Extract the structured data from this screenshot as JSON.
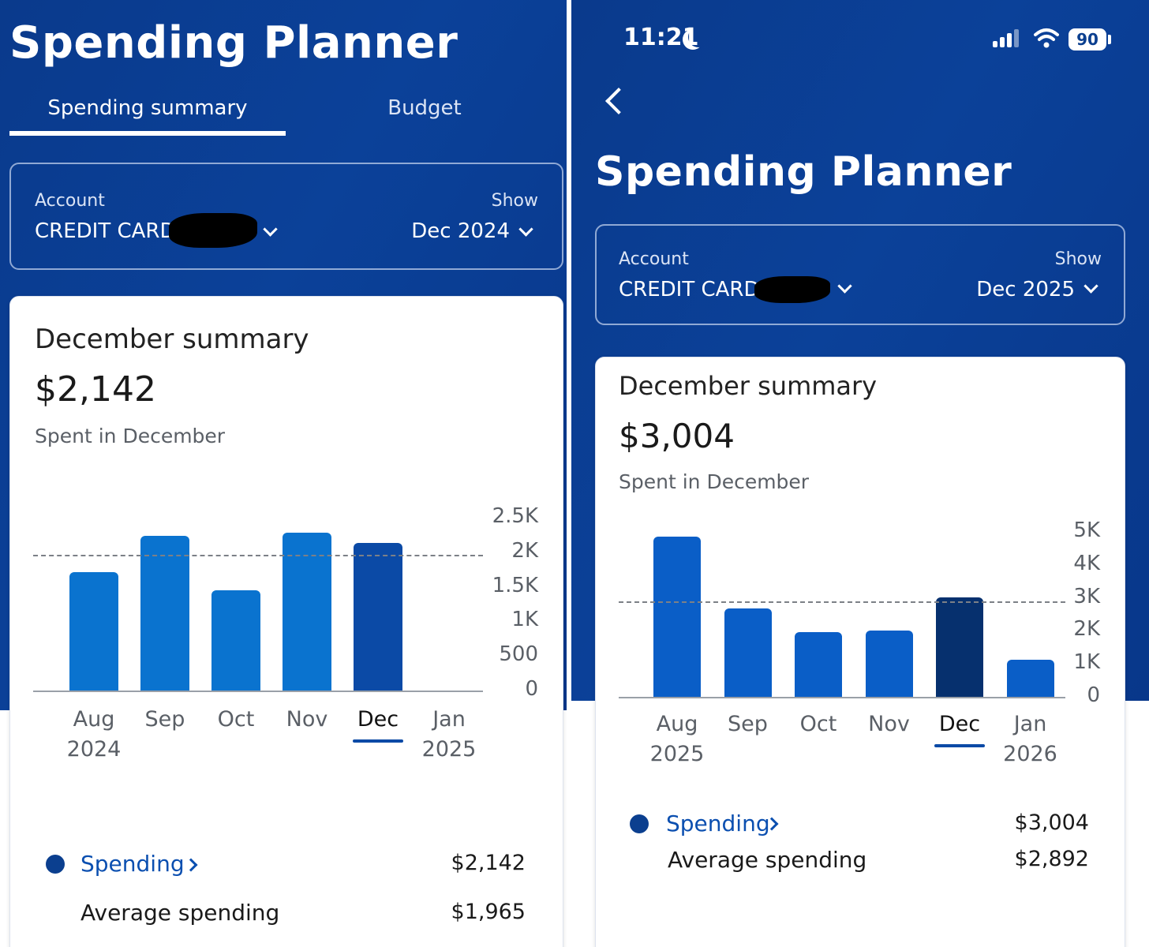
{
  "left": {
    "title": "Spending Planner",
    "tabs": [
      {
        "label": "Spending summary",
        "active": true
      },
      {
        "label": "Budget",
        "active": false
      }
    ],
    "account": {
      "label": "Account",
      "value": "CREDIT CARD"
    },
    "show": {
      "label": "Show",
      "value": "Dec 2024"
    },
    "summary": {
      "title": "December summary",
      "amount": "$2,142",
      "subtitle": "Spent in December"
    },
    "chart_data": {
      "type": "bar",
      "categories": [
        "Aug 2024",
        "Sep",
        "Oct",
        "Nov",
        "Dec",
        "Jan 2025"
      ],
      "x_labels": [
        [
          "Aug",
          "2024"
        ],
        [
          "Sep",
          ""
        ],
        [
          "Oct",
          ""
        ],
        [
          "Nov",
          ""
        ],
        [
          "Dec",
          ""
        ],
        [
          "Jan",
          "2025"
        ]
      ],
      "values": [
        1710,
        2240,
        1450,
        2280,
        2140,
        0
      ],
      "selected_index": 4,
      "average": 1965,
      "ylim": [
        0,
        2500
      ],
      "yticks": [
        "2.5K",
        "2K",
        "1.5K",
        "1K",
        "500",
        "0"
      ],
      "bar_color": "#0a73cf",
      "selected_color": "#0b4aa6"
    },
    "legend": {
      "spending_label": "Spending",
      "spending_value": "$2,142",
      "avg_label": "Average spending",
      "avg_value": "$1,965"
    }
  },
  "right": {
    "status": {
      "time": "11:21",
      "battery": "90"
    },
    "title": "Spending Planner",
    "account": {
      "label": "Account",
      "value": "CREDIT CARD"
    },
    "show": {
      "label": "Show",
      "value": "Dec 2025"
    },
    "summary": {
      "title": "December summary",
      "amount": "$3,004",
      "subtitle": "Spent in December"
    },
    "chart_data": {
      "type": "bar",
      "categories": [
        "Aug 2025",
        "Sep",
        "Oct",
        "Nov",
        "Dec",
        "Jan 2026"
      ],
      "x_labels": [
        [
          "Aug",
          "2025"
        ],
        [
          "Sep",
          ""
        ],
        [
          "Oct",
          ""
        ],
        [
          "Nov",
          ""
        ],
        [
          "Dec",
          ""
        ],
        [
          "Jan",
          "2026"
        ]
      ],
      "values": [
        4850,
        2670,
        1950,
        2000,
        3004,
        1130
      ],
      "selected_index": 4,
      "average": 2892,
      "ylim": [
        0,
        5000
      ],
      "yticks": [
        "5K",
        "4K",
        "3K",
        "2K",
        "1K",
        "0"
      ],
      "bar_color": "#0a5ec7",
      "selected_color": "#06306e"
    },
    "legend": {
      "spending_label": "Spending",
      "spending_value": "$3,004",
      "avg_label": "Average spending",
      "avg_value": "$2,892"
    }
  }
}
